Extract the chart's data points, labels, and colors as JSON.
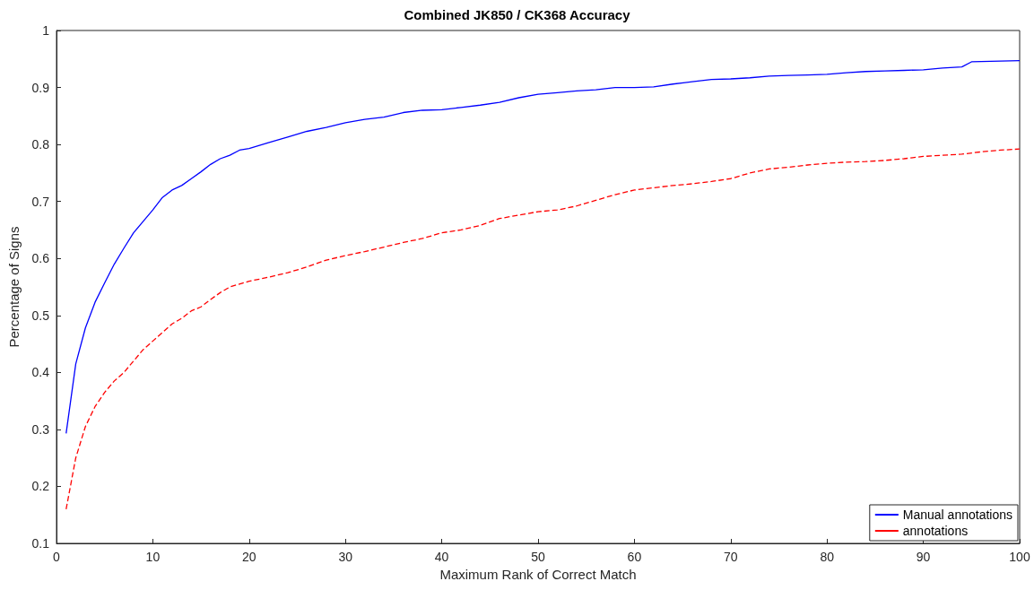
{
  "chart_data": {
    "type": "line",
    "title": "Combined JK850 / CK368 Accuracy",
    "xlabel": "Maximum Rank of Correct Match",
    "ylabel": "Percentage of Signs",
    "xlim": [
      0,
      100
    ],
    "xticks": [
      0,
      10,
      20,
      30,
      40,
      50,
      60,
      70,
      80,
      90,
      100
    ],
    "ylim": [
      0.1,
      1
    ],
    "yticks": [
      0.1,
      0.2,
      0.3,
      0.4,
      0.5,
      0.6,
      0.7,
      0.8,
      0.9,
      1
    ],
    "grid": false,
    "legend": "bottom right",
    "marker": "none",
    "series": [
      {
        "name": "Manual annotations",
        "color": "#0000ff",
        "line_style": "solid",
        "x": [
          1,
          2,
          3,
          4,
          5,
          6,
          7,
          8,
          9,
          10,
          11,
          12,
          13,
          14,
          15,
          16,
          17,
          18,
          19,
          20,
          22,
          24,
          26,
          28,
          30,
          32,
          34,
          36,
          38,
          40,
          42,
          44,
          46,
          48,
          50,
          52,
          54,
          56,
          58,
          60,
          62,
          64,
          66,
          68,
          70,
          72,
          74,
          76,
          78,
          80,
          82,
          84,
          86,
          88,
          90,
          92,
          94,
          95,
          97,
          100
        ],
        "values": [
          0.293,
          0.415,
          0.478,
          0.523,
          0.557,
          0.59,
          0.618,
          0.645,
          0.665,
          0.685,
          0.707,
          0.72,
          0.728,
          0.74,
          0.752,
          0.765,
          0.775,
          0.781,
          0.79,
          0.793,
          0.803,
          0.813,
          0.823,
          0.83,
          0.838,
          0.844,
          0.848,
          0.856,
          0.86,
          0.861,
          0.865,
          0.869,
          0.874,
          0.882,
          0.888,
          0.891,
          0.894,
          0.896,
          0.9,
          0.9,
          0.901,
          0.906,
          0.91,
          0.914,
          0.915,
          0.917,
          0.92,
          0.921,
          0.922,
          0.923,
          0.926,
          0.928,
          0.929,
          0.93,
          0.931,
          0.934,
          0.936,
          0.945,
          0.946,
          0.947
        ]
      },
      {
        "name": "annotations",
        "color": "#ff0000",
        "line_style": "dashed",
        "x": [
          1,
          2,
          3,
          4,
          5,
          6,
          7,
          8,
          9,
          10,
          11,
          12,
          13,
          14,
          15,
          16,
          17,
          18,
          20,
          22,
          24,
          26,
          28,
          30,
          32,
          34,
          36,
          38,
          40,
          42,
          44,
          46,
          48,
          50,
          52,
          54,
          56,
          58,
          60,
          62,
          64,
          66,
          68,
          70,
          72,
          74,
          76,
          78,
          80,
          82,
          84,
          86,
          88,
          90,
          92,
          94,
          96,
          98,
          100
        ],
        "values": [
          0.16,
          0.25,
          0.305,
          0.34,
          0.365,
          0.385,
          0.4,
          0.42,
          0.44,
          0.455,
          0.47,
          0.485,
          0.495,
          0.508,
          0.515,
          0.528,
          0.54,
          0.55,
          0.56,
          0.567,
          0.575,
          0.585,
          0.597,
          0.605,
          0.612,
          0.62,
          0.628,
          0.635,
          0.645,
          0.65,
          0.658,
          0.67,
          0.676,
          0.682,
          0.685,
          0.692,
          0.702,
          0.712,
          0.72,
          0.724,
          0.728,
          0.731,
          0.735,
          0.74,
          0.75,
          0.757,
          0.76,
          0.764,
          0.767,
          0.769,
          0.77,
          0.772,
          0.775,
          0.779,
          0.781,
          0.783,
          0.787,
          0.79,
          0.792
        ]
      }
    ]
  }
}
